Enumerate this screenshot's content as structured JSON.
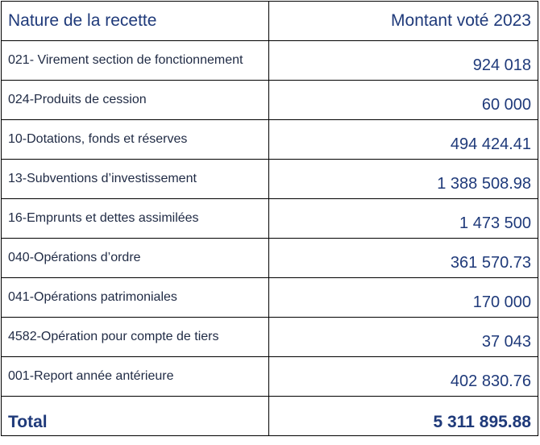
{
  "table": {
    "header": {
      "label": "Nature de la recette",
      "amount": "Montant voté 2023"
    },
    "rows": [
      {
        "label": "021- Virement section de fonctionnement",
        "amount": "924 018"
      },
      {
        "label": "024-Produits de cession",
        "amount": "60 000"
      },
      {
        "label": "10-Dotations, fonds et réserves",
        "amount": "494 424.41"
      },
      {
        "label": "13-Subventions d’investissement",
        "amount": "1 388 508.98"
      },
      {
        "label": "16-Emprunts et dettes assimilées",
        "amount": "1 473 500"
      },
      {
        "label": "040-Opérations d’ordre",
        "amount": "361 570.73"
      },
      {
        "label": "041-Opérations patrimoniales",
        "amount": "170 000"
      },
      {
        "label": "4582-Opération pour compte de tiers",
        "amount": "37 043"
      },
      {
        "label": "001-Report année antérieure",
        "amount": "402 830.76"
      }
    ],
    "total": {
      "label": "Total",
      "amount": "5 311 895.88"
    }
  },
  "colors": {
    "accent_text": "#1f3a7a",
    "body_text": "#1f2a44",
    "border": "#000000",
    "background": "#ffffff"
  }
}
